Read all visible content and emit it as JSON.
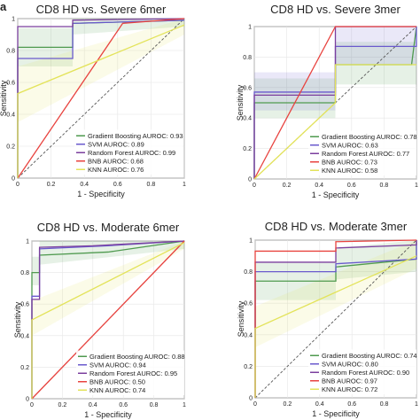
{
  "figure": {
    "panel_letter": "a"
  },
  "colors": {
    "Gradient Boosting": "#4f9a4f",
    "SVM": "#6a5acd",
    "Random Forest": "#7b3f9e",
    "BNB": "#e8433f",
    "KNN": "#e3e35a",
    "diagonal": "#555555",
    "band": "#c8d3ee"
  },
  "chart_data": [
    {
      "type": "line",
      "title": "CD8 HD vs. Severe 6mer",
      "xlabel": "1 - Specificity",
      "ylabel": "Sensitivity",
      "xlim": [
        0,
        1
      ],
      "ylim": [
        0,
        1
      ],
      "x_ticks": [
        "0",
        "0.2",
        "0.4",
        "0.6",
        "0.8",
        "1"
      ],
      "y_ticks": [
        "0",
        "0.2",
        "0.4",
        "0.6",
        "0.8",
        "1"
      ],
      "grid": true,
      "legend_position": "lower-right",
      "legend": [
        "Gradient Boosting AUROC: 0.93",
        "SVM AUROC: 0.89",
        "Random Forest AUROC: 0.99",
        "BNB AUROC: 0.68",
        "KNN AUROC: 0.76"
      ],
      "series": [
        {
          "model": "Gradient Boosting",
          "points": [
            [
              0,
              0
            ],
            [
              0,
              0.82
            ],
            [
              0.33,
              0.82
            ],
            [
              0.33,
              0.97
            ],
            [
              1,
              0.99
            ]
          ]
        },
        {
          "model": "SVM",
          "points": [
            [
              0,
              0
            ],
            [
              0,
              0.75
            ],
            [
              0.33,
              0.75
            ],
            [
              0.33,
              0.97
            ],
            [
              1,
              0.99
            ]
          ]
        },
        {
          "model": "Random Forest",
          "points": [
            [
              0,
              0
            ],
            [
              0,
              0.95
            ],
            [
              0.33,
              0.95
            ],
            [
              0.33,
              0.99
            ],
            [
              1,
              1
            ]
          ]
        },
        {
          "model": "BNB",
          "points": [
            [
              0,
              0
            ],
            [
              0.63,
              0.97
            ],
            [
              1,
              1
            ]
          ]
        },
        {
          "model": "KNN",
          "points": [
            [
              0,
              0
            ],
            [
              0,
              0.53
            ],
            [
              1,
              0.96
            ]
          ]
        }
      ],
      "bands": [
        {
          "model": "Gradient Boosting",
          "points": [
            [
              0,
              0.7,
              0.94
            ],
            [
              0.33,
              0.7,
              0.94
            ],
            [
              0.33,
              0.9,
              1
            ],
            [
              1,
              0.95,
              1
            ]
          ]
        },
        {
          "model": "KNN",
          "points": [
            [
              0,
              0.35,
              0.7
            ],
            [
              1,
              0.9,
              1
            ]
          ]
        }
      ]
    },
    {
      "type": "line",
      "title": "CD8 HD vs. Severe 3mer",
      "xlabel": "1 - Specificity",
      "ylabel": "Sensitivity",
      "xlim": [
        0,
        1
      ],
      "ylim": [
        0,
        1
      ],
      "x_ticks": [
        "0",
        "0.2",
        "0.4",
        "0.6",
        "0.8",
        "1"
      ],
      "y_ticks": [
        "0",
        "0.2",
        "0.4",
        "0.6",
        "0.8",
        "1"
      ],
      "grid": true,
      "legend_position": "lower-right",
      "legend": [
        "Gradient Boosting AUROC: 0.78",
        "SVM AUROC: 0.63",
        "Random Forest AUROC: 0.77",
        "BNB AUROC: 0.73",
        "KNN AUROC: 0.58"
      ],
      "series": [
        {
          "model": "Gradient Boosting",
          "points": [
            [
              0,
              0
            ],
            [
              0,
              0.5
            ],
            [
              0.5,
              0.5
            ],
            [
              0.5,
              0.75
            ],
            [
              0.97,
              0.75
            ],
            [
              1,
              1
            ]
          ]
        },
        {
          "model": "SVM",
          "points": [
            [
              0,
              0
            ],
            [
              0,
              0.57
            ],
            [
              0.5,
              0.57
            ],
            [
              0.5,
              0.87
            ],
            [
              1,
              0.87
            ],
            [
              1,
              1
            ]
          ]
        },
        {
          "model": "Random Forest",
          "points": [
            [
              0,
              0
            ],
            [
              0,
              0.55
            ],
            [
              0.5,
              0.55
            ],
            [
              0.5,
              1
            ],
            [
              1,
              1
            ]
          ]
        },
        {
          "model": "BNB",
          "points": [
            [
              0,
              0
            ],
            [
              0.5,
              1
            ],
            [
              1,
              1
            ]
          ]
        },
        {
          "model": "KNN",
          "points": [
            [
              0,
              0
            ],
            [
              0.5,
              0.5
            ],
            [
              0.5,
              0.75
            ],
            [
              1,
              0.75
            ]
          ]
        }
      ],
      "bands": [
        {
          "model": "Gradient Boosting",
          "points": [
            [
              0,
              0.4,
              0.66
            ],
            [
              0.5,
              0.4,
              0.66
            ],
            [
              0.5,
              0.62,
              0.9
            ],
            [
              1,
              0.62,
              0.9
            ]
          ]
        },
        {
          "model": "SVM",
          "points": [
            [
              0,
              0.45,
              0.7
            ],
            [
              0.5,
              0.45,
              0.7
            ],
            [
              0.5,
              0.75,
              1
            ],
            [
              1,
              0.75,
              1
            ]
          ]
        }
      ]
    },
    {
      "type": "line",
      "title": "CD8 HD vs. Moderate 6mer",
      "xlabel": "1 - Specificity",
      "ylabel": "Sensitivity",
      "xlim": [
        0,
        1
      ],
      "ylim": [
        0,
        1
      ],
      "x_ticks": [
        "0",
        "0.2",
        "0.4",
        "0.6",
        "0.8",
        "1"
      ],
      "y_ticks": [
        "0",
        "0.2",
        "0.4",
        "0.6",
        "0.8",
        "1"
      ],
      "grid": true,
      "legend_position": "lower-right",
      "legend": [
        "Gradient Boosting AUROC: 0.88",
        "SVM AUROC: 0.94",
        "Random Forest AUROC: 0.95",
        "BNB AUROC: 0.50",
        "KNN AUROC: 0.74"
      ],
      "series": [
        {
          "model": "Gradient Boosting",
          "points": [
            [
              0,
              0
            ],
            [
              0,
              0.8
            ],
            [
              0.05,
              0.8
            ],
            [
              0.05,
              0.91
            ],
            [
              0.5,
              0.93
            ],
            [
              1,
              1
            ]
          ]
        },
        {
          "model": "SVM",
          "points": [
            [
              0,
              0
            ],
            [
              0,
              0.65
            ],
            [
              0.05,
              0.65
            ],
            [
              0.05,
              0.95
            ],
            [
              0.5,
              0.97
            ],
            [
              1,
              1
            ]
          ]
        },
        {
          "model": "Random Forest",
          "points": [
            [
              0,
              0
            ],
            [
              0,
              0.63
            ],
            [
              0.05,
              0.63
            ],
            [
              0.05,
              0.96
            ],
            [
              0.4,
              0.97
            ],
            [
              1,
              1
            ]
          ]
        },
        {
          "model": "BNB",
          "points": [
            [
              0,
              0
            ],
            [
              1,
              1
            ]
          ]
        },
        {
          "model": "KNN",
          "points": [
            [
              0,
              0
            ],
            [
              0,
              0.5
            ],
            [
              1,
              0.99
            ]
          ]
        }
      ],
      "bands": [
        {
          "model": "Gradient Boosting",
          "points": [
            [
              0,
              0.72,
              0.9
            ],
            [
              0.05,
              0.72,
              0.9
            ],
            [
              0.05,
              0.85,
              1
            ],
            [
              1,
              0.95,
              1
            ]
          ]
        },
        {
          "model": "KNN",
          "points": [
            [
              0,
              0.4,
              0.62
            ],
            [
              1,
              0.95,
              1
            ]
          ]
        }
      ]
    },
    {
      "type": "line",
      "title": "CD8 HD vs. Moderate 3mer",
      "xlabel": "1 - Specificity",
      "ylabel": "Sensitivity",
      "xlim": [
        0,
        1
      ],
      "ylim": [
        0,
        1
      ],
      "x_ticks": [
        "0",
        "0.2",
        "0.4",
        "0.6",
        "0.8",
        "1"
      ],
      "y_ticks": [
        "0",
        "0.2",
        "0.4",
        "0.6",
        "0.8",
        "1"
      ],
      "grid": true,
      "legend_position": "lower-right",
      "legend": [
        "Gradient Boosting AUROC: 0.74",
        "SVM AUROC: 0.80",
        "Random Forest AUROC: 0.90",
        "BNB AUROC: 0.97",
        "KNN AUROC: 0.72"
      ],
      "series": [
        {
          "model": "Gradient Boosting",
          "points": [
            [
              0,
              0
            ],
            [
              0,
              0.74
            ],
            [
              0.5,
              0.74
            ],
            [
              0.5,
              0.83
            ],
            [
              1,
              0.88
            ],
            [
              1,
              1
            ]
          ]
        },
        {
          "model": "SVM",
          "points": [
            [
              0,
              0
            ],
            [
              0,
              0.8
            ],
            [
              0.5,
              0.8
            ],
            [
              0.5,
              0.85
            ],
            [
              1,
              0.88
            ],
            [
              1,
              1
            ]
          ]
        },
        {
          "model": "Random Forest",
          "points": [
            [
              0,
              0
            ],
            [
              0,
              0.86
            ],
            [
              0.5,
              0.86
            ],
            [
              0.5,
              0.95
            ],
            [
              1,
              0.97
            ],
            [
              1,
              1
            ]
          ]
        },
        {
          "model": "BNB",
          "points": [
            [
              0,
              0
            ],
            [
              0,
              0.93
            ],
            [
              0.5,
              0.93
            ],
            [
              0.5,
              0.99
            ],
            [
              1,
              1
            ]
          ]
        },
        {
          "model": "KNN",
          "points": [
            [
              0,
              0
            ],
            [
              0,
              0.44
            ],
            [
              1,
              0.9
            ]
          ]
        }
      ],
      "bands": [
        {
          "model": "Gradient Boosting",
          "points": [
            [
              0,
              0.62,
              0.86
            ],
            [
              0.5,
              0.62,
              0.86
            ],
            [
              0.5,
              0.75,
              0.95
            ],
            [
              1,
              0.8,
              1
            ]
          ]
        },
        {
          "model": "KNN",
          "points": [
            [
              0,
              0.32,
              0.58
            ],
            [
              1,
              0.82,
              1
            ]
          ]
        }
      ]
    }
  ]
}
